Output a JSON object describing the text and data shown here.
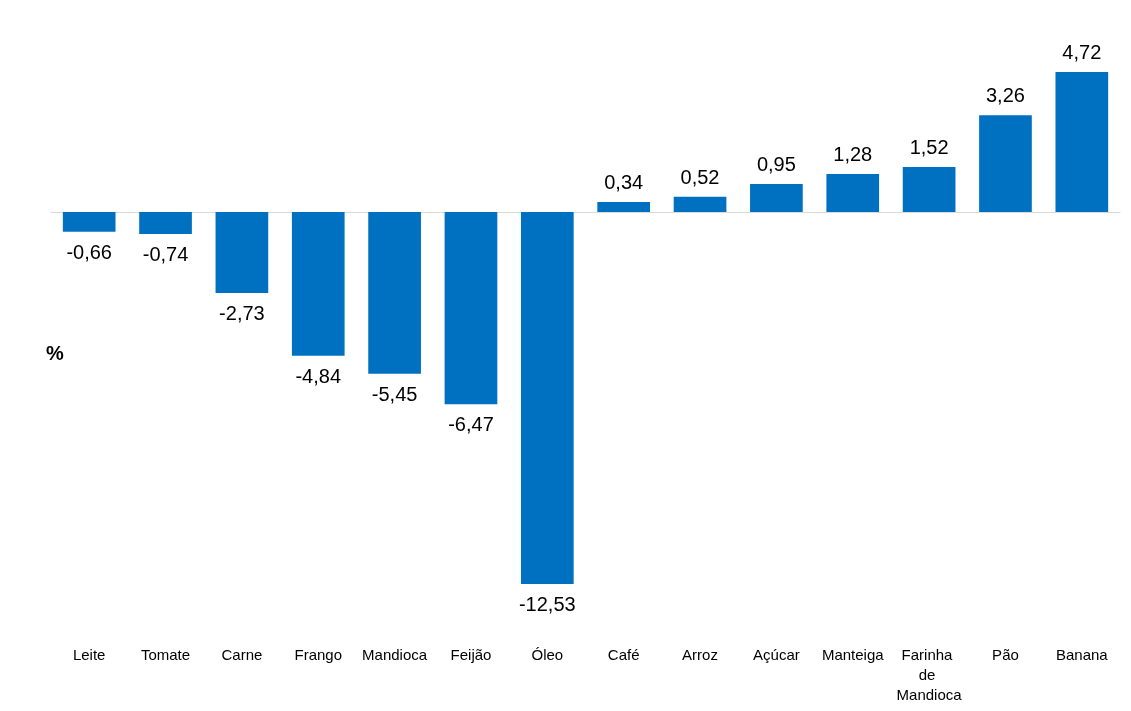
{
  "chart_data": {
    "type": "bar",
    "ylabel": "%",
    "categories": [
      "Leite",
      "Tomate",
      "Carne",
      "Frango",
      "Mandioca",
      "Feijão",
      "Óleo",
      "Café",
      "Arroz",
      "Açúcar",
      "Manteiga",
      "Farinha de Mandioca",
      "Pão",
      "Banana"
    ],
    "values": [
      -0.66,
      -0.74,
      -2.73,
      -4.84,
      -5.45,
      -6.47,
      -12.53,
      0.34,
      0.52,
      0.95,
      1.28,
      1.52,
      3.26,
      4.72
    ],
    "value_labels": [
      "-0,66",
      "-0,74",
      "-2,73",
      "-4,84",
      "-5,45",
      "-6,47",
      "-12,53",
      "0,34",
      "0,52",
      "0,95",
      "1,28",
      "1,52",
      "3,26",
      "4,72"
    ],
    "color": "#0070c0"
  }
}
